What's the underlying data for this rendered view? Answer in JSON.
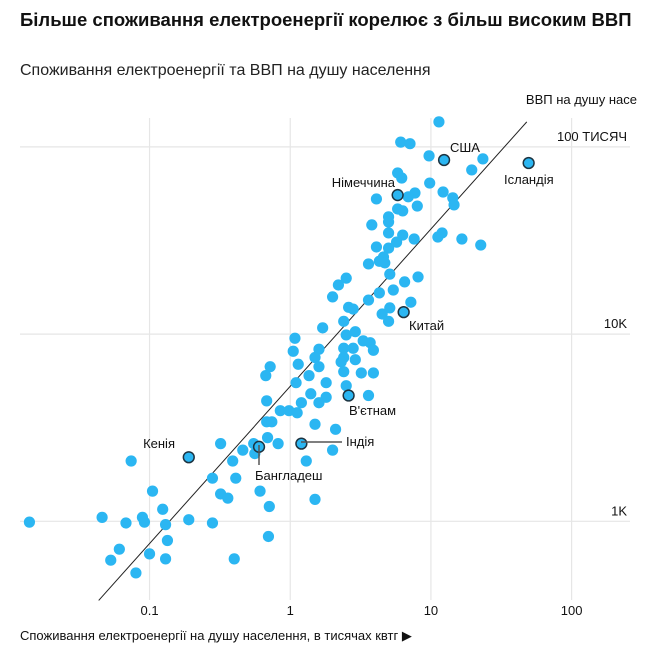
{
  "title": "Більше споживання електроенергії корелює з більш високим ВВП",
  "subtitle": "Споживання електроенергії та ВВП на душу населення",
  "colors": {
    "dot": "#2bb6f2",
    "highlight_stroke": "#1d3340",
    "grid": "#e6e6e6",
    "trend": "#222222"
  },
  "chart_data": {
    "type": "scatter",
    "title": "Більше споживання електроенергії корелює з більш високим ВВП",
    "subtitle": "Споживання електроенергії та ВВП на душу населення",
    "xlabel": "Споживання електроенергії на душу населення, в тисячах квтг ▶",
    "ylabel": "ВВП на душу насе",
    "x_scale": "log",
    "y_scale": "log",
    "xlim": [
      0.012,
      260
    ],
    "ylim": [
      380,
      148000
    ],
    "grid": true,
    "x_ticks": [
      {
        "value": 0.1,
        "label": "0.1"
      },
      {
        "value": 1,
        "label": "1"
      },
      {
        "value": 10,
        "label": "10"
      },
      {
        "value": 100,
        "label": "100"
      }
    ],
    "y_ticks": [
      {
        "value": 1000,
        "label": "1K"
      },
      {
        "value": 10000,
        "label": "10K"
      },
      {
        "value": 100000,
        "label": "100 ТИСЯЧ"
      }
    ],
    "trend_line": [
      [
        0.0435,
        378
      ],
      [
        48,
        136000
      ]
    ],
    "points": [
      [
        11.4,
        136000
      ],
      [
        6.1,
        106000
      ],
      [
        7.1,
        104000
      ],
      [
        9.7,
        89500
      ],
      [
        23.4,
        86300
      ],
      [
        19.5,
        75300
      ],
      [
        5.8,
        72600
      ],
      [
        6.2,
        68200
      ],
      [
        9.8,
        64100
      ],
      [
        12.2,
        57400
      ],
      [
        7.7,
        56700
      ],
      [
        6.9,
        54100
      ],
      [
        14.3,
        53400
      ],
      [
        14.6,
        49000
      ],
      [
        4.1,
        52700
      ],
      [
        8.0,
        48300
      ],
      [
        5.8,
        46600
      ],
      [
        6.3,
        45500
      ],
      [
        5.0,
        42300
      ],
      [
        5.0,
        39700
      ],
      [
        3.8,
        38300
      ],
      [
        12.0,
        34700
      ],
      [
        11.2,
        33000
      ],
      [
        16.6,
        32200
      ],
      [
        22.6,
        29900
      ],
      [
        5.0,
        34700
      ],
      [
        6.3,
        33800
      ],
      [
        7.6,
        32200
      ],
      [
        5.7,
        31000
      ],
      [
        4.1,
        29200
      ],
      [
        5.0,
        28800
      ],
      [
        4.6,
        25800
      ],
      [
        4.3,
        24500
      ],
      [
        3.6,
        23700
      ],
      [
        4.7,
        24000
      ],
      [
        5.1,
        20900
      ],
      [
        8.1,
        20200
      ],
      [
        6.5,
        19000
      ],
      [
        2.5,
        19900
      ],
      [
        2.2,
        18300
      ],
      [
        5.4,
        17200
      ],
      [
        4.3,
        16600
      ],
      [
        2.0,
        15800
      ],
      [
        3.6,
        15200
      ],
      [
        7.2,
        14800
      ],
      [
        2.6,
        13900
      ],
      [
        2.8,
        13600
      ],
      [
        5.1,
        13800
      ],
      [
        4.5,
        12800
      ],
      [
        5.0,
        11700
      ],
      [
        2.4,
        11700
      ],
      [
        1.7,
        10800
      ],
      [
        1.08,
        9500
      ],
      [
        2.9,
        10300
      ],
      [
        2.5,
        9900
      ],
      [
        3.3,
        9200
      ],
      [
        3.7,
        9000
      ],
      [
        1.05,
        8100
      ],
      [
        1.6,
        8300
      ],
      [
        2.4,
        8400
      ],
      [
        2.8,
        8400
      ],
      [
        1.5,
        7500
      ],
      [
        3.9,
        8200
      ],
      [
        1.14,
        6900
      ],
      [
        2.4,
        7500
      ],
      [
        2.3,
        7100
      ],
      [
        2.9,
        7300
      ],
      [
        1.6,
        6700
      ],
      [
        0.72,
        6700
      ],
      [
        0.67,
        6000
      ],
      [
        2.4,
        6300
      ],
      [
        3.2,
        6200
      ],
      [
        3.9,
        6200
      ],
      [
        1.36,
        6000
      ],
      [
        1.8,
        5500
      ],
      [
        1.1,
        5500
      ],
      [
        2.5,
        5300
      ],
      [
        3.6,
        4700
      ],
      [
        1.4,
        4800
      ],
      [
        1.8,
        4600
      ],
      [
        0.68,
        4400
      ],
      [
        1.2,
        4300
      ],
      [
        1.6,
        4300
      ],
      [
        0.85,
        3900
      ],
      [
        0.98,
        3900
      ],
      [
        1.12,
        3800
      ],
      [
        0.68,
        3400
      ],
      [
        0.74,
        3400
      ],
      [
        1.5,
        3300
      ],
      [
        2.1,
        3100
      ],
      [
        0.32,
        2600
      ],
      [
        0.55,
        2600
      ],
      [
        0.69,
        2800
      ],
      [
        0.82,
        2600
      ],
      [
        0.46,
        2400
      ],
      [
        0.56,
        2300
      ],
      [
        2.0,
        2400
      ],
      [
        0.074,
        2100
      ],
      [
        0.39,
        2100
      ],
      [
        1.3,
        2100
      ],
      [
        0.28,
        1700
      ],
      [
        0.41,
        1700
      ],
      [
        0.61,
        1450
      ],
      [
        0.105,
        1450
      ],
      [
        0.32,
        1400
      ],
      [
        0.36,
        1330
      ],
      [
        1.5,
        1310
      ],
      [
        0.71,
        1200
      ],
      [
        0.124,
        1160
      ],
      [
        0.014,
        990
      ],
      [
        0.046,
        1050
      ],
      [
        0.068,
        980
      ],
      [
        0.089,
        1050
      ],
      [
        0.092,
        990
      ],
      [
        0.13,
        960
      ],
      [
        0.19,
        1020
      ],
      [
        0.28,
        980
      ],
      [
        0.7,
        830
      ],
      [
        0.134,
        790
      ],
      [
        0.061,
        710
      ],
      [
        0.1,
        670
      ],
      [
        0.053,
        620
      ],
      [
        0.13,
        630
      ],
      [
        0.4,
        630
      ],
      [
        0.08,
        530
      ]
    ],
    "highlighted": [
      {
        "name": "США",
        "x": 12.4,
        "y": 85100
      },
      {
        "name": "Ісландія",
        "x": 49.5,
        "y": 82000
      },
      {
        "name": "Німеччина",
        "x": 5.8,
        "y": 55300
      },
      {
        "name": "Китай",
        "x": 6.4,
        "y": 13100
      },
      {
        "name": "В'єтнам",
        "x": 2.6,
        "y": 4700
      },
      {
        "name": "Індія",
        "x": 1.2,
        "y": 2600
      },
      {
        "name": "Бангладеш",
        "x": 0.6,
        "y": 2500
      },
      {
        "name": "Кенія",
        "x": 0.19,
        "y": 2200
      }
    ]
  }
}
